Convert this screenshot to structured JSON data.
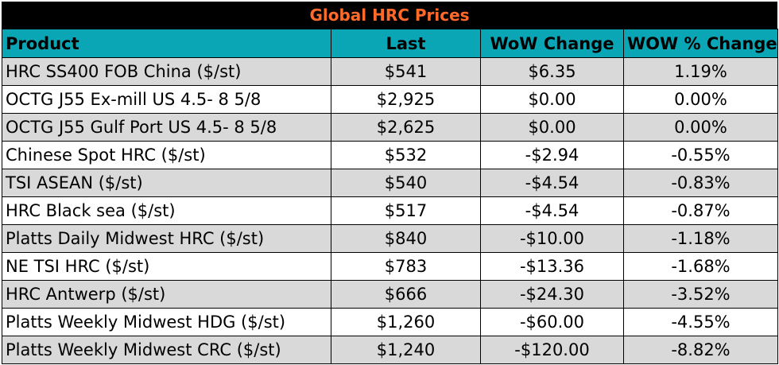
{
  "title": "Global HRC Prices",
  "columns": [
    "Product",
    "Last",
    "WoW Change",
    "WOW % Change"
  ],
  "rows": [
    {
      "product": "HRC SS400 FOB China ($/st)",
      "last": "$541",
      "wow_change": "$6.35",
      "wow_pct": "1.19%"
    },
    {
      "product": "OCTG J55 Ex-mill US 4.5- 8 5/8",
      "last": "$2,925",
      "wow_change": "$0.00",
      "wow_pct": "0.00%"
    },
    {
      "product": "OCTG J55 Gulf Port US 4.5- 8 5/8",
      "last": "$2,625",
      "wow_change": "$0.00",
      "wow_pct": "0.00%"
    },
    {
      "product": "Chinese Spot HRC ($/st)",
      "last": "$532",
      "wow_change": "-$2.94",
      "wow_pct": "-0.55%"
    },
    {
      "product": "TSI ASEAN ($/st)",
      "last": "$540",
      "wow_change": "-$4.54",
      "wow_pct": "-0.83%"
    },
    {
      "product": "HRC Black sea ($/st)",
      "last": "$517",
      "wow_change": "-$4.54",
      "wow_pct": "-0.87%"
    },
    {
      "product": "Platts Daily Midwest HRC ($/st)",
      "last": "$840",
      "wow_change": "-$10.00",
      "wow_pct": "-1.18%"
    },
    {
      "product": "NE TSI HRC ($/st)",
      "last": "$783",
      "wow_change": "-$13.36",
      "wow_pct": "-1.68%"
    },
    {
      "product": "HRC Antwerp ($/st)",
      "last": "$666",
      "wow_change": "-$24.30",
      "wow_pct": "-3.52%"
    },
    {
      "product": "Platts Weekly Midwest HDG ($/st)",
      "last": "$1,260",
      "wow_change": "-$60.00",
      "wow_pct": "-4.55%"
    },
    {
      "product": "Platts Weekly Midwest CRC ($/st)",
      "last": "$1,240",
      "wow_change": "-$120.00",
      "wow_pct": "-8.82%"
    }
  ],
  "colors": {
    "title_bg": "#000000",
    "title_text": "#ff6a2b",
    "header_bg": "#0aa6b5",
    "row_shade": "#d9d9d9"
  }
}
